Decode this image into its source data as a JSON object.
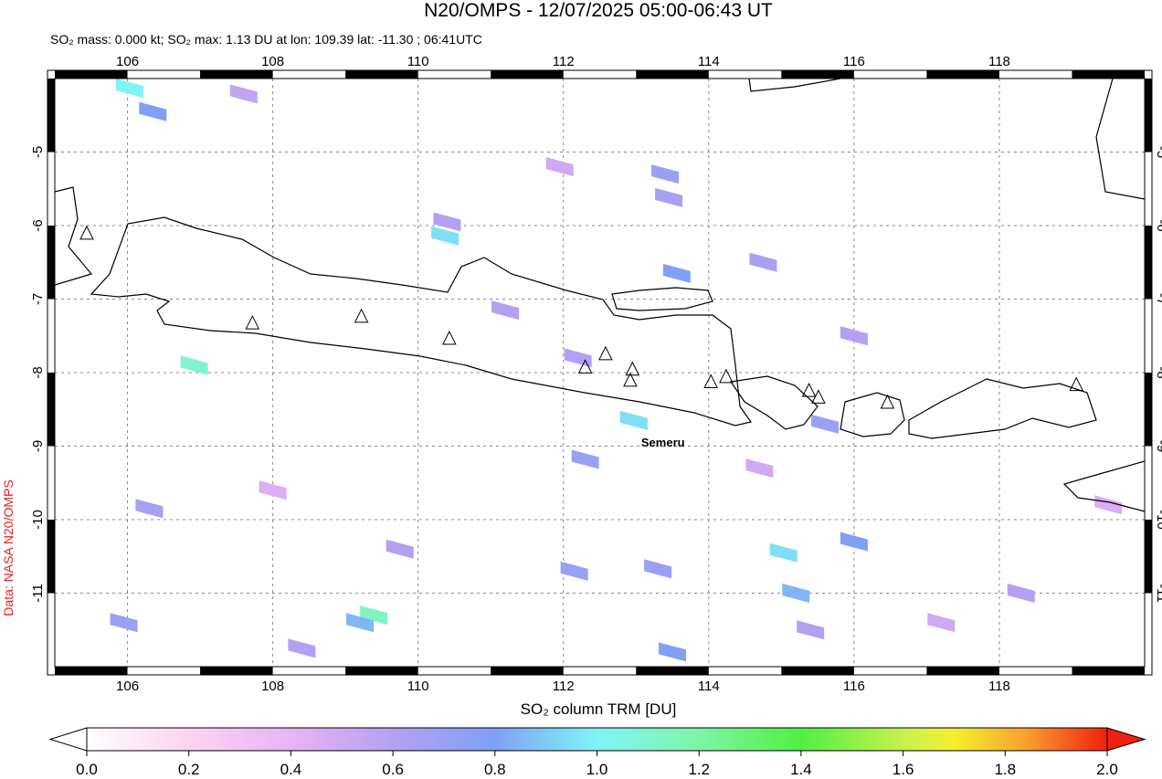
{
  "title": "N20/OMPS - 12/07/2025 05:00-06:43 UT",
  "subtitle": "SO₂ mass: 0.000 kt; SO₂ max: 1.13 DU at lon: 109.39 lat: -11.30 ; 06:41UTC",
  "credit": "Data: NASA N20/OMPS",
  "map": {
    "xlim": [
      105,
      120
    ],
    "ylim": [
      -12,
      -4
    ],
    "xticks": [
      106,
      108,
      110,
      112,
      114,
      116,
      118
    ],
    "yticks": [
      -5,
      -6,
      -7,
      -8,
      -9,
      -10,
      -11
    ],
    "grid": true,
    "volcanoes": [
      {
        "lon": 105.44,
        "lat": -6.11
      },
      {
        "lon": 107.72,
        "lat": -7.33
      },
      {
        "lon": 109.22,
        "lat": -7.24
      },
      {
        "lon": 110.43,
        "lat": -7.54
      },
      {
        "lon": 112.3,
        "lat": -7.93
      },
      {
        "lon": 112.58,
        "lat": -7.75
      },
      {
        "lon": 112.95,
        "lat": -7.96
      },
      {
        "lon": 112.92,
        "lat": -8.11,
        "name": "Semeru"
      },
      {
        "lon": 114.03,
        "lat": -8.13
      },
      {
        "lon": 114.24,
        "lat": -8.06
      },
      {
        "lon": 115.38,
        "lat": -8.25
      },
      {
        "lon": 115.51,
        "lat": -8.34
      },
      {
        "lon": 116.46,
        "lat": -8.41
      },
      {
        "lon": 119.06,
        "lat": -8.17
      }
    ],
    "pixels": {
      "lon": [
        110.37,
        106.03,
        106.92,
        109.39,
        115.03,
        112.97,
        115.2,
        113.56,
        113.5,
        116.0,
        112.3,
        113.4,
        113.45,
        110.4,
        114.75,
        115.6,
        116.0,
        112.15,
        113.3,
        108.4,
        109.2,
        107.6,
        106.35,
        111.2,
        112.2,
        115.4,
        117.2,
        118.3,
        105.95,
        106.3,
        109.75,
        114.7,
        119.5,
        108.0,
        111.95
      ],
      "lat": [
        -6.14,
        -4.13,
        -7.9,
        -11.3,
        -10.45,
        -8.65,
        -11.0,
        -6.65,
        -11.8,
        -10.3,
        -9.18,
        -5.3,
        -5.62,
        -5.95,
        -6.5,
        -8.7,
        -7.5,
        -10.7,
        -10.67,
        -11.75,
        -11.4,
        -4.21,
        -4.45,
        -7.15,
        -7.8,
        -11.5,
        -11.4,
        -11.0,
        -11.4,
        -9.85,
        -10.4,
        -9.3,
        -9.8,
        -9.6,
        -5.2
      ],
      "so2": [
        0.95,
        1.0,
        1.1,
        1.13,
        0.95,
        0.95,
        0.85,
        0.8,
        0.8,
        0.8,
        0.7,
        0.7,
        0.65,
        0.6,
        0.65,
        0.7,
        0.6,
        0.7,
        0.7,
        0.6,
        0.85,
        0.55,
        0.8,
        0.6,
        0.6,
        0.6,
        0.5,
        0.6,
        0.7,
        0.65,
        0.6,
        0.5,
        0.45,
        0.45,
        0.5
      ]
    }
  },
  "colorbar": {
    "label": "SO₂ column TRM [DU]",
    "lim": [
      0,
      2
    ],
    "ticks": [
      {
        "value": 0,
        "label": "0.0"
      },
      {
        "value": 0.2,
        "label": "0.2"
      },
      {
        "value": 0.4,
        "label": "0.4"
      },
      {
        "value": 0.6,
        "label": "0.6"
      },
      {
        "value": 0.8,
        "label": "0.8"
      },
      {
        "value": 1,
        "label": "1.0"
      },
      {
        "value": 1.2,
        "label": "1.2"
      },
      {
        "value": 1.4,
        "label": "1.4"
      },
      {
        "value": 1.6,
        "label": "1.6"
      },
      {
        "value": 1.8,
        "label": "1.8"
      },
      {
        "value": 2,
        "label": "2.0"
      }
    ]
  }
}
